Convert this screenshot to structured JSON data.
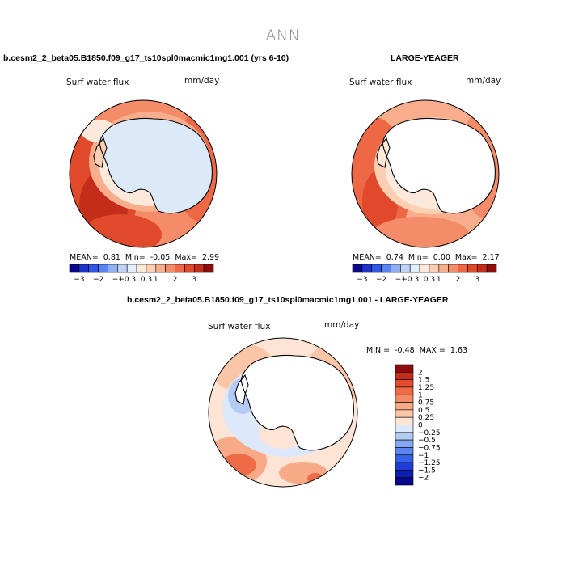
{
  "page": {
    "title": "ANN"
  },
  "panels": [
    {
      "title": "b.cesm2_2_beta05.B1850.f09_g17_ts10spl0macmic1mg1.001 (yrs 6-10)",
      "variable": "Surf water flux",
      "units": "mm/day",
      "mean_label": "MEAN=",
      "mean": "0.81",
      "min_label": "Min=",
      "min": "-0.05",
      "max_label": "Max=",
      "max": "2.99"
    },
    {
      "title": "LARGE-YEAGER",
      "variable": "Surf water flux",
      "units": "mm/day",
      "mean_label": "MEAN=",
      "mean": "0.74",
      "min_label": "Min=",
      "min": "0.00",
      "max_label": "Max=",
      "max": "2.17"
    },
    {
      "title": "b.cesm2_2_beta05.B1850.f09_g17_ts10spl0macmic1mg1.001 - LARGE-YEAGER",
      "variable": "Surf water flux",
      "units": "mm/day",
      "min_label": "MIN =",
      "min": "-0.48",
      "max_label": "MAX =",
      "max": "1.63"
    }
  ],
  "colorbar_abs": {
    "colors": [
      "#08088a",
      "#1a33c8",
      "#2f56e6",
      "#5a84ef",
      "#8fb0f3",
      "#bcd2f6",
      "#e4effb",
      "#fde9db",
      "#fbcfb2",
      "#f8ae8c",
      "#f48c69",
      "#ee6845",
      "#e04a2b",
      "#c42d19",
      "#8e0c0c"
    ],
    "tick_labels": [
      "−3",
      "−2",
      "−1",
      "−0.3",
      "0.3",
      "1",
      "2",
      "3"
    ]
  },
  "colorbar_diff": {
    "colors": [
      "#08088a",
      "#0a1fb0",
      "#1f3cd6",
      "#3560ec",
      "#5a84ef",
      "#86a8f2",
      "#b3cbf5",
      "#dde9fb",
      "#fde4d5",
      "#fbc6a8",
      "#f8a986",
      "#f38a66",
      "#ee6b48",
      "#e24b2c",
      "#c42d19",
      "#8e0c0c"
    ],
    "tick_labels": [
      "2",
      "1.5",
      "1.25",
      "1",
      "0.75",
      "0.5",
      "0.25",
      "0",
      "−0.25",
      "−0.5",
      "−0.75",
      "−1",
      "−1.25",
      "−1.5",
      "−2"
    ]
  },
  "chart_data": [
    {
      "type": "heatmap",
      "projection": "south-polar-stereographic",
      "title": "b.cesm2_2_beta05.B1850.f09_g17_ts10spl0macmic1mg1.001 (yrs 6-10)",
      "variable": "Surf water flux",
      "units": "mm/day",
      "mean": 0.81,
      "min": -0.05,
      "max": 2.99,
      "contour_levels": [
        -3,
        -2,
        -1,
        -0.3,
        0.3,
        1,
        2,
        3
      ]
    },
    {
      "type": "heatmap",
      "projection": "south-polar-stereographic",
      "title": "LARGE-YEAGER",
      "variable": "Surf water flux",
      "units": "mm/day",
      "mean": 0.74,
      "min": 0.0,
      "max": 2.17,
      "contour_levels": [
        -3,
        -2,
        -1,
        -0.3,
        0.3,
        1,
        2,
        3
      ]
    },
    {
      "type": "heatmap",
      "projection": "south-polar-stereographic",
      "title": "b.cesm2_2_beta05.B1850.f09_g17_ts10spl0macmic1mg1.001 - LARGE-YEAGER",
      "variable": "Surf water flux",
      "units": "mm/day",
      "min": -0.48,
      "max": 1.63,
      "contour_levels": [
        -2,
        -1.5,
        -1.25,
        -1,
        -0.75,
        -0.5,
        -0.25,
        0,
        0.25,
        0.5,
        0.75,
        1,
        1.25,
        1.5,
        2
      ]
    }
  ]
}
